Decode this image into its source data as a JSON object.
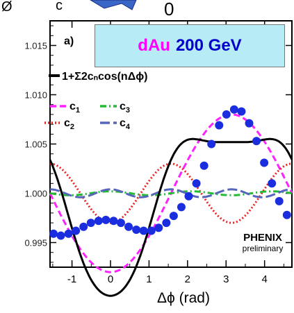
{
  "panel_label": "a)",
  "collision": {
    "system": "dAu",
    "energy": "200 GeV"
  },
  "fit_label": "1+Σ2cₙcos(nΔϕ)",
  "legend": [
    {
      "name": "c1",
      "base": "c",
      "sub": "1",
      "color": "#ff22ff",
      "dash": "dash"
    },
    {
      "name": "c3",
      "base": "c",
      "sub": "3",
      "color": "#22bb33",
      "dash": "dashdot"
    },
    {
      "name": "c2",
      "base": "c",
      "sub": "2",
      "color": "#ee2222",
      "dash": "dot"
    },
    {
      "name": "c4",
      "base": "c",
      "sub": "4",
      "color": "#5566bb",
      "dash": "longdash"
    }
  ],
  "logo": {
    "text": "PHENIX",
    "sub": "preliminary"
  },
  "chart_data": {
    "type": "scatter",
    "xlabel": "Δϕ (rad)",
    "ylabel": "",
    "xlim": [
      -1.57,
      4.71
    ],
    "ylim": [
      0.9925,
      1.0175
    ],
    "xticks": [
      -1,
      0,
      1,
      2,
      3,
      4
    ],
    "yticks": [
      0.995,
      1.0,
      1.005,
      1.01,
      1.015
    ],
    "ytick_labels": [
      "0.995",
      "1.000",
      "1.005",
      "1.010",
      "1.015"
    ],
    "points": {
      "x": [
        -1.48,
        -1.29,
        -1.09,
        -0.9,
        -0.7,
        -0.51,
        -0.31,
        -0.12,
        0.08,
        0.27,
        0.47,
        0.67,
        0.86,
        1.06,
        1.25,
        1.45,
        1.64,
        1.84,
        2.03,
        2.23,
        2.43,
        2.62,
        2.82,
        3.01,
        3.21,
        3.4,
        3.6,
        3.79,
        3.99,
        4.19,
        4.38,
        4.58
      ],
      "y": [
        0.9959,
        0.9957,
        0.9959,
        0.9962,
        0.9966,
        0.997,
        0.9972,
        0.9973,
        0.9972,
        0.997,
        0.9966,
        0.9963,
        0.9962,
        0.9962,
        0.9965,
        0.997,
        0.9977,
        0.9986,
        0.9997,
        1.001,
        1.0028,
        1.005,
        1.0069,
        1.008,
        1.0085,
        1.0083,
        1.0071,
        1.0053,
        1.0031,
        1.001,
        0.9992,
        0.9978
      ]
    },
    "fit": {
      "name": "1+Σ2cₙcos(nΔϕ)",
      "c": [
        -0.004,
        -0.0015,
        0.0001,
        0.0002
      ]
    },
    "harmonics": [
      {
        "name": "c1",
        "n": 1,
        "c": -0.004
      },
      {
        "name": "c2",
        "n": 2,
        "c": -0.0015
      },
      {
        "name": "c3",
        "n": 3,
        "c": 0.0001
      },
      {
        "name": "c4",
        "n": 4,
        "c": 0.0002
      }
    ]
  }
}
